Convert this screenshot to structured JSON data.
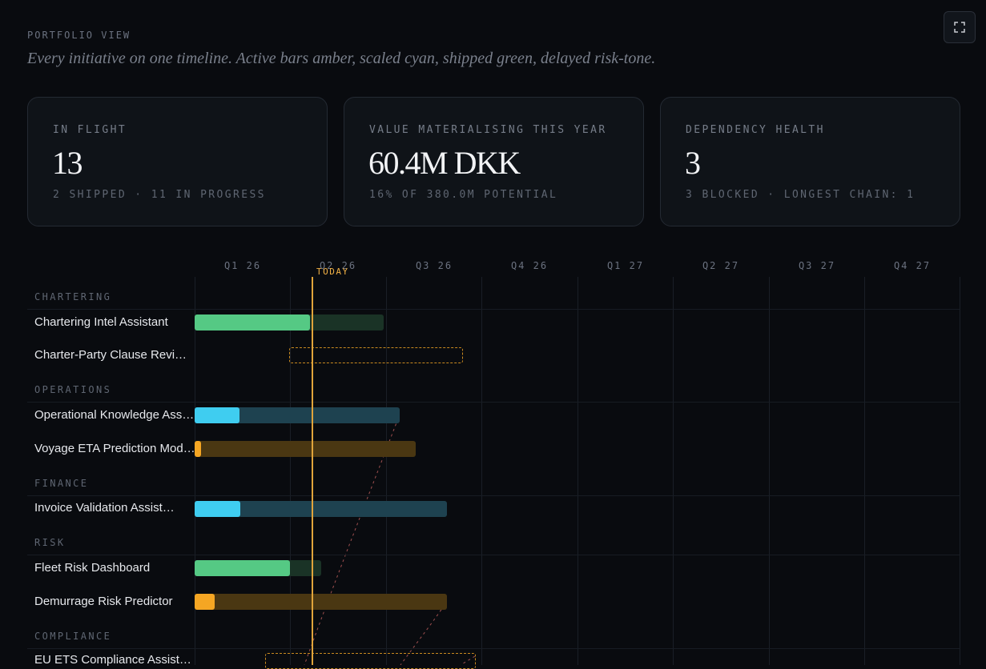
{
  "header": {
    "eyebrow": "PORTFOLIO VIEW",
    "tagline": "Every initiative on one timeline. Active bars amber, scaled cyan, shipped green, delayed risk-tone."
  },
  "toolbar": {
    "expand_icon": "expand-icon"
  },
  "stats": [
    {
      "label": "IN FLIGHT",
      "value": "13",
      "sub": "2 SHIPPED · 11 IN PROGRESS"
    },
    {
      "label": "VALUE MATERIALISING THIS YEAR",
      "value": "60.4M DKK",
      "sub": "16% OF 380.0M POTENTIAL"
    },
    {
      "label": "DEPENDENCY HEALTH",
      "value": "3",
      "sub": "3 BLOCKED · LONGEST CHAIN: 1"
    }
  ],
  "timeline": {
    "quarters": [
      "Q1 26",
      "Q2 26",
      "Q3 26",
      "Q4 26",
      "Q1 27",
      "Q2 27",
      "Q3 27",
      "Q4 27"
    ],
    "today_label": "TODAY",
    "colors": {
      "active": "#f5a623",
      "scaled": "#3fcdf0",
      "shipped": "#55c984",
      "today": "#e0a43b"
    },
    "groups": [
      {
        "name": "CHARTERING",
        "rows": [
          {
            "label": "Chartering Intel Assistant",
            "status": "shipped",
            "progress": 0.61
          },
          {
            "label": "Charter-Party Clause Review Assistant",
            "display": "Charter-Party Clause Revi…",
            "status": "planned"
          }
        ]
      },
      {
        "name": "OPERATIONS",
        "rows": [
          {
            "label": "Operational Knowledge Assistant",
            "display": "Operational Knowledge Ass…",
            "status": "scaled",
            "progress": 0.22
          },
          {
            "label": "Voyage ETA Prediction Model",
            "display": "Voyage ETA Prediction Mod…",
            "status": "active",
            "progress": 0.03
          }
        ]
      },
      {
        "name": "FINANCE",
        "rows": [
          {
            "label": "Invoice Validation Assistant",
            "display": "Invoice Validation Assist…",
            "status": "scaled",
            "progress": 0.18
          }
        ]
      },
      {
        "name": "RISK",
        "rows": [
          {
            "label": "Fleet Risk Dashboard",
            "status": "shipped",
            "progress": 0.75
          },
          {
            "label": "Demurrage Risk Predictor",
            "status": "active",
            "progress": 0.08
          }
        ]
      },
      {
        "name": "COMPLIANCE",
        "rows": [
          {
            "label": "EU ETS Compliance Assistant",
            "display": "EU ETS Compliance Assista…",
            "status": "planned"
          }
        ]
      }
    ]
  }
}
